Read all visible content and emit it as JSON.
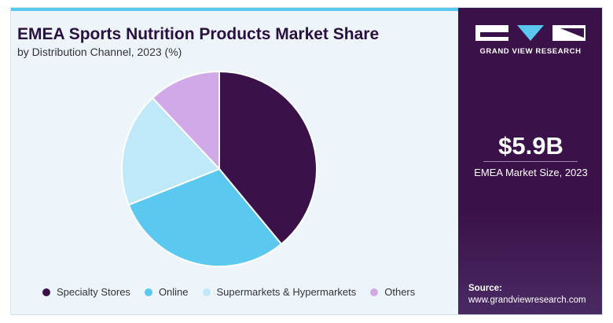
{
  "header": {
    "title": "EMEA Sports Nutrition Products Market Share",
    "subtitle": "by Distribution Channel, 2023 (%)"
  },
  "chart_data": {
    "type": "pie",
    "categories": [
      "Specialty Stores",
      "Online",
      "Supermarkets & Hypermarkets",
      "Others"
    ],
    "values": [
      39,
      30,
      19,
      12
    ],
    "colors": [
      "#3a1148",
      "#5bc8f0",
      "#bfe8f8",
      "#d2a9e8"
    ],
    "legend_position": "bottom"
  },
  "sidebar": {
    "logo_text": "GRAND VIEW RESEARCH",
    "kpi_value": "$5.9B",
    "kpi_label": "EMEA Market Size, 2023",
    "source_title": "Source:",
    "source_url": "www.grandviewresearch.com"
  }
}
